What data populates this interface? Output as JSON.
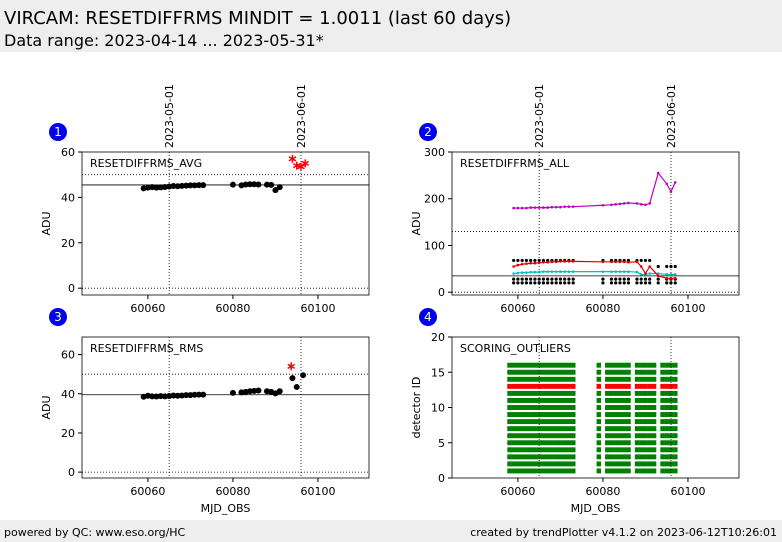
{
  "header": {
    "title": "VIRCAM: RESETDIFFRMS MINDIT = 1.0011 (last 60 days)",
    "subtitle": "Data range: 2023-04-14 ... 2023-05-31*"
  },
  "footer": {
    "left": "powered by QC: www.eso.org/HC",
    "right": "created by trendPlotter v4.1.2 on 2023-06-12T10:26:01"
  },
  "chart_data": [
    {
      "type": "scatter",
      "panel_number": "1",
      "label": "RESETDIFFRMS_AVG",
      "ylabel": "ADU",
      "xlim": [
        60044.5,
        60112
      ],
      "xticks": [
        60060,
        60080,
        60100
      ],
      "ylim": [
        -3,
        60
      ],
      "yticks": [
        0,
        20,
        40,
        60
      ],
      "date_lines": [
        {
          "value": 60065,
          "label": "2023-05-01"
        },
        {
          "value": 60096,
          "label": "2023-06-01"
        }
      ],
      "hlines": [
        {
          "value": 50,
          "style": "dotted"
        },
        {
          "value": 45.5,
          "style": "solid"
        },
        {
          "value": 0,
          "style": "dotted"
        }
      ],
      "series": [
        {
          "color": "#000000",
          "marker": "circle",
          "x": [
            60059,
            60060,
            60061,
            60062,
            60063,
            60064,
            60065,
            60066,
            60067,
            60068,
            60069,
            60070,
            60071,
            60072,
            60073,
            60080,
            60082,
            60083,
            60084,
            60085,
            60086,
            60088,
            60089,
            60090,
            60091
          ],
          "values": [
            44,
            44.3,
            44.5,
            44.3,
            44.4,
            44.6,
            44.8,
            45,
            44.9,
            45.1,
            45.2,
            45.3,
            45.3,
            45.4,
            45.4,
            45.6,
            45.3,
            45.7,
            45.8,
            45.8,
            45.7,
            45.6,
            45.5,
            43.2,
            44.5
          ]
        },
        {
          "color": "#ff0000",
          "marker": "star",
          "x": [
            60094,
            60095,
            60096,
            60097
          ],
          "values": [
            57,
            54,
            53.5,
            55
          ]
        }
      ]
    },
    {
      "type": "line",
      "panel_number": "2",
      "label": "RESETDIFFRMS_ALL",
      "ylabel": "ADU",
      "xlim": [
        60044.5,
        60112
      ],
      "xticks": [
        60060,
        60080,
        60100
      ],
      "ylim": [
        -6,
        300
      ],
      "yticks": [
        0,
        100,
        200,
        300
      ],
      "date_lines": [
        {
          "value": 60065,
          "label": "2023-05-01"
        },
        {
          "value": 60096,
          "label": "2023-06-01"
        }
      ],
      "hlines": [
        {
          "value": 130,
          "style": "dotted"
        },
        {
          "value": 35,
          "style": "solid"
        },
        {
          "value": 0,
          "style": "dotted"
        }
      ],
      "x": [
        60059,
        60060,
        60061,
        60062,
        60063,
        60064,
        60065,
        60066,
        60067,
        60068,
        60069,
        60070,
        60071,
        60072,
        60073,
        60080,
        60082,
        60083,
        60084,
        60085,
        60086,
        60088,
        60089,
        60090,
        60091,
        60093,
        60095,
        60096,
        60097
      ],
      "series": [
        {
          "color": "#000000",
          "marker": "dot",
          "values": [
            20,
            20,
            20,
            20,
            20,
            20,
            20,
            20,
            20,
            20,
            20,
            20,
            20,
            20,
            20,
            20,
            20,
            20,
            20,
            20,
            20,
            20,
            20,
            20,
            20,
            20,
            20,
            20,
            20
          ]
        },
        {
          "color": "#000000",
          "marker": "dot",
          "values": [
            28,
            28,
            28,
            28,
            28,
            28,
            28,
            28,
            28,
            28,
            28,
            28,
            28,
            28,
            28,
            28,
            28,
            28,
            28,
            28,
            28,
            28,
            28,
            28,
            28,
            28,
            28,
            28,
            28
          ]
        },
        {
          "color": "#000000",
          "marker": "dot",
          "values": [
            68,
            68,
            68,
            68,
            68,
            68,
            68,
            68,
            68,
            68,
            68,
            68,
            68,
            68,
            68,
            68,
            68,
            68,
            68,
            68,
            68,
            68,
            68,
            68,
            68,
            55,
            55,
            55,
            55
          ]
        },
        {
          "color": "#00bfbf",
          "marker": "line",
          "values": [
            40,
            41,
            42,
            42,
            43,
            43,
            43,
            44,
            44,
            44,
            44,
            44,
            44,
            44,
            44,
            44,
            44,
            44,
            44,
            44,
            44,
            43,
            38,
            38,
            40,
            40,
            38,
            38,
            38
          ]
        },
        {
          "color": "#e00000",
          "marker": "line",
          "values": [
            55,
            58,
            60,
            61,
            62,
            62,
            63,
            64,
            64,
            65,
            65,
            66,
            66,
            66,
            66,
            65,
            65,
            65,
            65,
            65,
            64,
            65,
            55,
            40,
            55,
            35,
            30,
            30,
            30
          ]
        },
        {
          "color": "#bf00bf",
          "marker": "line",
          "values": [
            180,
            180,
            180,
            180,
            181,
            181,
            181,
            181,
            181,
            182,
            182,
            182,
            183,
            183,
            183,
            186,
            187,
            188,
            189,
            190,
            191,
            190,
            188,
            187,
            190,
            255,
            232,
            215,
            235
          ]
        }
      ]
    },
    {
      "type": "scatter",
      "panel_number": "3",
      "label": "RESETDIFFRMS_RMS",
      "ylabel": "ADU",
      "xlabel": "MJD_OBS",
      "xlim": [
        60044.5,
        60112
      ],
      "xticks": [
        60060,
        60080,
        60100
      ],
      "ylim": [
        -3,
        69
      ],
      "yticks": [
        0,
        20,
        40,
        60
      ],
      "date_lines": [
        60065,
        60096
      ],
      "hlines": [
        {
          "value": 50,
          "style": "dotted"
        },
        {
          "value": 39.5,
          "style": "solid"
        },
        {
          "value": 0,
          "style": "dotted"
        }
      ],
      "series": [
        {
          "color": "#000000",
          "marker": "circle",
          "x": [
            60059,
            60060,
            60061,
            60062,
            60063,
            60064,
            60065,
            60066,
            60067,
            60068,
            60069,
            60070,
            60071,
            60072,
            60073,
            60080,
            60082,
            60083,
            60084,
            60085,
            60086,
            60088,
            60089,
            60090,
            60091,
            60094,
            60095,
            60096.5
          ],
          "values": [
            38.5,
            39,
            38.7,
            38.6,
            38.8,
            38.7,
            38.9,
            39.1,
            39,
            39.1,
            39.3,
            39.3,
            39.5,
            39.6,
            39.6,
            40.5,
            40.7,
            41,
            41.3,
            41.5,
            41.7,
            41.3,
            41,
            40.2,
            41.3,
            48,
            43.5,
            49.5
          ]
        },
        {
          "color": "#ff0000",
          "marker": "star",
          "x": [
            60093.7
          ],
          "values": [
            54
          ]
        }
      ]
    },
    {
      "type": "occupancy",
      "panel_number": "4",
      "label": "SCORING_OUTLIERS",
      "ylabel": "detector ID",
      "xlabel": "MJD_OBS",
      "xlim": [
        60044.5,
        60112
      ],
      "xticks": [
        60060,
        60080,
        60100
      ],
      "ylim": [
        0,
        20
      ],
      "yticks": [
        0,
        5,
        10,
        15,
        20
      ],
      "date_lines": [
        60065,
        60096
      ],
      "color": "#008000",
      "outlier_color": "#ff0000",
      "x": [
        60058,
        60059,
        60060,
        60061,
        60062,
        60063,
        60064,
        60065,
        60066,
        60067,
        60068,
        60069,
        60070,
        60071,
        60072,
        60073,
        60079,
        60081,
        60082,
        60083,
        60084,
        60085,
        60086,
        60088,
        60089,
        60090,
        60091,
        60092,
        60094,
        60095,
        60096,
        60097
      ],
      "detectors": [
        1,
        2,
        3,
        4,
        5,
        6,
        7,
        8,
        9,
        10,
        11,
        12,
        13,
        14,
        15,
        16
      ],
      "outlier_detectors": [
        13
      ]
    }
  ]
}
